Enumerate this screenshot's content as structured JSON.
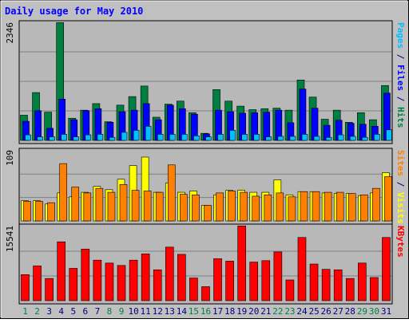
{
  "chart_data": {
    "type": "bar",
    "title": "Daily usage for May 2010",
    "categories": [
      "1",
      "2",
      "3",
      "4",
      "5",
      "6",
      "7",
      "8",
      "9",
      "10",
      "11",
      "12",
      "13",
      "14",
      "15",
      "16",
      "17",
      "18",
      "19",
      "20",
      "21",
      "22",
      "23",
      "24",
      "25",
      "26",
      "27",
      "28",
      "29",
      "30",
      "31"
    ],
    "weekend_days": [
      "1",
      "2",
      "8",
      "9",
      "15",
      "16",
      "22",
      "23",
      "29",
      "30"
    ],
    "panels": [
      {
        "id": "pages-files-hits",
        "max_label": "2346",
        "ylim": [
          0,
          2346
        ],
        "axis_label_parts": [
          {
            "text": "Pages",
            "color": "#00c0ff"
          },
          {
            "text": " / ",
            "color": "#000080"
          },
          {
            "text": "Files",
            "color": "#0000ff"
          },
          {
            "text": " / ",
            "color": "#000080"
          },
          {
            "text": "Hits",
            "color": "#008040"
          }
        ],
        "series": [
          {
            "name": "Hits",
            "color": "#008040",
            "values": [
              500,
              950,
              560,
              2340,
              440,
              600,
              730,
              370,
              700,
              870,
              1080,
              460,
              720,
              780,
              550,
              140,
              1010,
              780,
              680,
              610,
              630,
              640,
              600,
              1200,
              860,
              420,
              600,
              360,
              550,
              410,
              1090
            ]
          },
          {
            "name": "Files",
            "color": "#0000ff",
            "values": [
              380,
              590,
              240,
              820,
              410,
              590,
              630,
              360,
              570,
              600,
              730,
              410,
              700,
              630,
              520,
              130,
              600,
              570,
              540,
              550,
              560,
              600,
              350,
              1020,
              640,
              300,
              400,
              340,
              320,
              280,
              940
            ]
          },
          {
            "name": "Pages",
            "color": "#00c0ff",
            "values": [
              110,
              70,
              70,
              120,
              70,
              110,
              120,
              60,
              160,
              200,
              280,
              120,
              120,
              120,
              90,
              70,
              120,
              200,
              120,
              120,
              70,
              80,
              80,
              120,
              80,
              60,
              110,
              80,
              60,
              120,
              210
            ]
          }
        ]
      },
      {
        "id": "sites-visits",
        "max_label": "109",
        "ylim": [
          0,
          109
        ],
        "axis_label_parts": [
          {
            "text": "Sites",
            "color": "#ff8000"
          },
          {
            "text": " / ",
            "color": "#000080"
          },
          {
            "text": "Visits",
            "color": "#ffff00"
          }
        ],
        "series": [
          {
            "name": "Visits",
            "color": "#ffff00",
            "values": [
              31,
              31,
              26,
              43,
              37,
              44,
              53,
              48,
              64,
              85,
              98,
              44,
              58,
              44,
              46,
              24,
              40,
              47,
              47,
              44,
              44,
              63,
              40,
              45,
              45,
              43,
              42,
              42,
              39,
              43,
              74
            ]
          },
          {
            "name": "Sites",
            "color": "#ff8000",
            "values": [
              30,
              30,
              28,
              88,
              52,
              43,
              50,
              44,
              56,
              47,
              46,
              44,
              86,
              41,
              40,
              24,
              43,
              46,
              44,
              38,
              40,
              43,
              37,
              45,
              45,
              44,
              44,
              42,
              40,
              50,
              68
            ]
          }
        ]
      },
      {
        "id": "kbytes",
        "max_label": "15541",
        "ylim": [
          0,
          15541
        ],
        "axis_label_parts": [
          {
            "text": "KBytes",
            "color": "#ff0000"
          }
        ],
        "series": [
          {
            "name": "KBytes",
            "color": "#ff0000",
            "values": [
              5400,
              7200,
              4600,
              12200,
              6700,
              10700,
              8400,
              7800,
              7300,
              8400,
              9700,
              6400,
              11100,
              9600,
              4700,
              2900,
              8700,
              8200,
              15500,
              8000,
              8300,
              10100,
              4300,
              13100,
              7600,
              6500,
              6400,
              4600,
              7800,
              4800,
              13100
            ]
          }
        ]
      }
    ],
    "grid": true,
    "colors": {
      "frame_bg": "#c0c0c0",
      "plot_bg": "#b8b8b8",
      "title": "#0000ff",
      "day_label": "#000080",
      "weekend_label": "#008040"
    }
  }
}
